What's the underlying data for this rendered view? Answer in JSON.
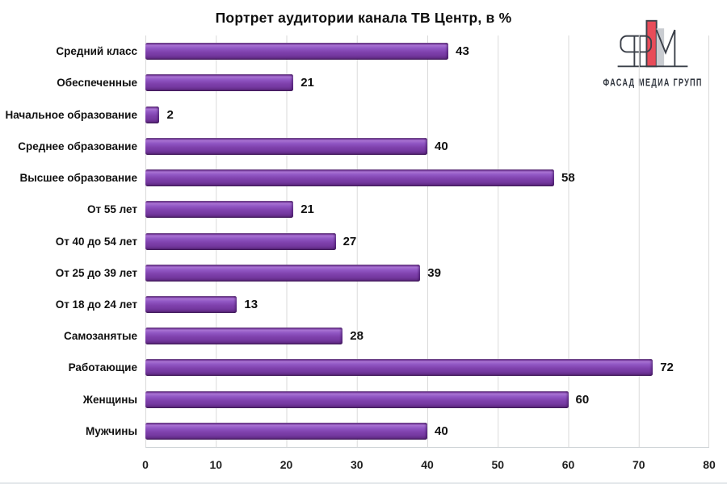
{
  "chart_data": {
    "type": "bar",
    "orientation": "horizontal",
    "title": "Портрет аудитории канала ТВ Центр, в %",
    "categories": [
      "Средний класс",
      "Обеспеченные",
      "Начальное образование",
      "Среднее образование",
      "Высшее образование",
      "От 55 лет",
      "От 40 до 54 лет",
      "От 25 до 39 лет",
      "От 18 до 24 лет",
      "Самозанятые",
      "Работающие",
      "Женщины",
      "Мужчины"
    ],
    "values": [
      43,
      21,
      2,
      40,
      58,
      21,
      27,
      39,
      13,
      28,
      72,
      60,
      40
    ],
    "xlabel": "",
    "ylabel": "",
    "xlim": [
      0,
      80
    ],
    "x_ticks": [
      0,
      10,
      20,
      30,
      40,
      50,
      60,
      70,
      80
    ],
    "grid": "vertical",
    "legend": "none",
    "bar_color": "#7B3BA6",
    "gridline_color": "#DADADA"
  },
  "logo": {
    "text": "ФАСАД МЕДИА ГРУПП",
    "accent_red": "#E84C59",
    "building_gray": "#C9CCD1",
    "outline": "#3B4049"
  }
}
